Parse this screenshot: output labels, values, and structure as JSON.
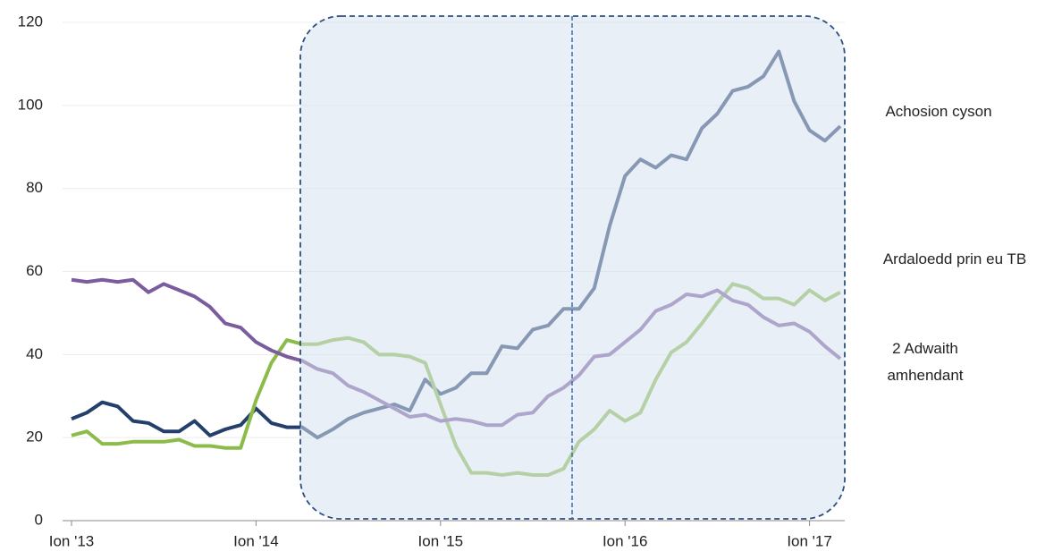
{
  "chart_data": {
    "type": "line",
    "categories": [
      "Ion '13",
      null,
      null,
      null,
      null,
      null,
      null,
      null,
      null,
      null,
      null,
      null,
      "Ion '14",
      null,
      null,
      null,
      null,
      null,
      null,
      null,
      null,
      null,
      null,
      null,
      "Ion '15",
      null,
      null,
      null,
      null,
      null,
      null,
      null,
      null,
      null,
      null,
      null,
      "Ion '16",
      null,
      null,
      null,
      null,
      null,
      null,
      null,
      null,
      null,
      null,
      null,
      "Ion '17",
      null,
      null
    ],
    "series": [
      {
        "name": "Achosion cyson",
        "color": "#243f6b",
        "values": [
          24.5,
          26,
          28.5,
          27.5,
          24,
          23.5,
          21.5,
          21.5,
          24,
          20.5,
          22,
          23,
          27,
          23.5,
          22.5,
          22.5,
          20,
          22,
          24.5,
          26,
          27,
          28,
          26.5,
          34,
          30.5,
          32,
          35.5,
          35.5,
          42,
          41.5,
          46,
          47,
          51,
          51,
          56,
          71,
          83,
          87,
          85,
          88,
          87,
          94.5,
          98,
          103.5,
          104.5,
          107,
          113,
          101,
          94,
          91.5,
          95
        ]
      },
      {
        "name": "Ardaloedd prin eu TB",
        "color": "#8dbb4a",
        "values": [
          20.5,
          21.5,
          18.5,
          18.5,
          19,
          19,
          19,
          19.5,
          18,
          18,
          17.5,
          17.5,
          29,
          38,
          43.5,
          42.5,
          42.5,
          43.5,
          44,
          43,
          40,
          40,
          39.5,
          38,
          28,
          18,
          11.5,
          11.5,
          11,
          11.5,
          11,
          11,
          12.5,
          19,
          22,
          26.5,
          24,
          26,
          34,
          40.5,
          43,
          47.5,
          52.5,
          57,
          56,
          53.5,
          53.5,
          52,
          55.5,
          53,
          55
        ]
      },
      {
        "name": "2 Adwaith amhendant",
        "color": "#7b5c9e",
        "values": [
          58,
          57.5,
          58,
          57.5,
          58,
          55,
          57,
          55.5,
          54,
          51.5,
          47.5,
          46.5,
          43,
          41,
          39.5,
          38.5,
          36.5,
          35.5,
          32.5,
          31,
          29,
          27,
          25,
          25.5,
          24,
          24.5,
          24,
          23,
          23,
          25.5,
          26,
          30,
          32,
          35,
          39.5,
          40,
          43,
          46,
          50.5,
          52,
          54.5,
          54,
          55.5,
          53,
          52,
          49,
          47,
          47.5,
          45.5,
          42,
          39
        ]
      }
    ],
    "ylim": [
      0,
      120
    ],
    "yticks": [
      0,
      20,
      40,
      60,
      80,
      100,
      120
    ],
    "grid": true
  }
}
